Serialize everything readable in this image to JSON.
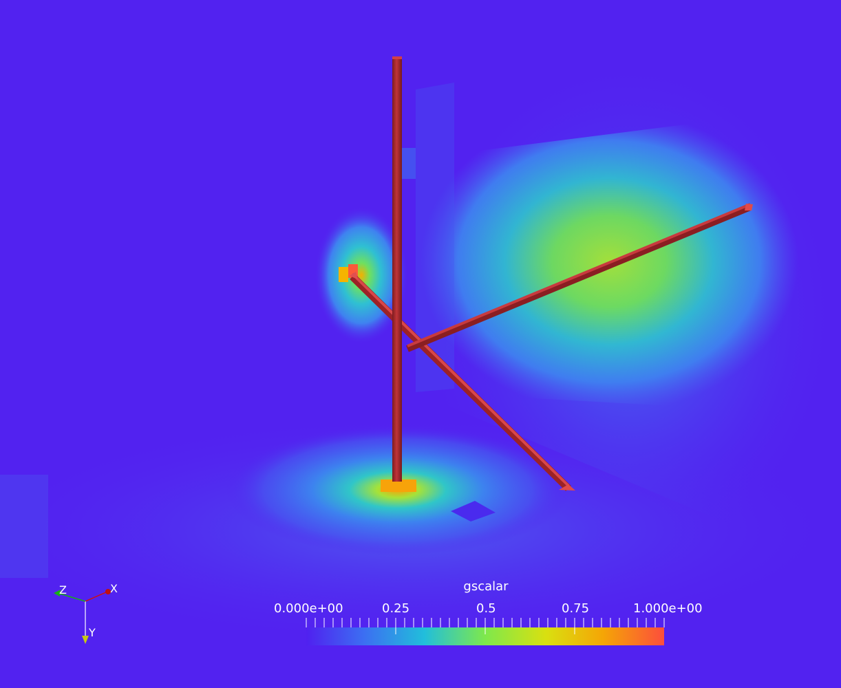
{
  "colorbar": {
    "title": "gscalar",
    "min_label": "0.000e+00",
    "max_label": "1.000e+00",
    "tick_labels": [
      "0.25",
      "0.5",
      "0.75"
    ],
    "range": [
      0,
      1
    ],
    "tick_values": [
      0.25,
      0.5,
      0.75
    ],
    "colormap": [
      "#5020f0",
      "#3c6ef2",
      "#21bedb",
      "#7ee84c",
      "#d9e010",
      "#f5a506",
      "#fc4e3c"
    ]
  },
  "orientation_axes": {
    "x_label": "X",
    "y_label": "Y",
    "z_label": "Z",
    "x_color": "#d01010",
    "y_color": "#c8c814",
    "z_color": "#18b018"
  },
  "scene": {
    "background": "#5222f0",
    "rod_color": "#a8262a",
    "rod_count": 3,
    "slice_count": 3
  }
}
